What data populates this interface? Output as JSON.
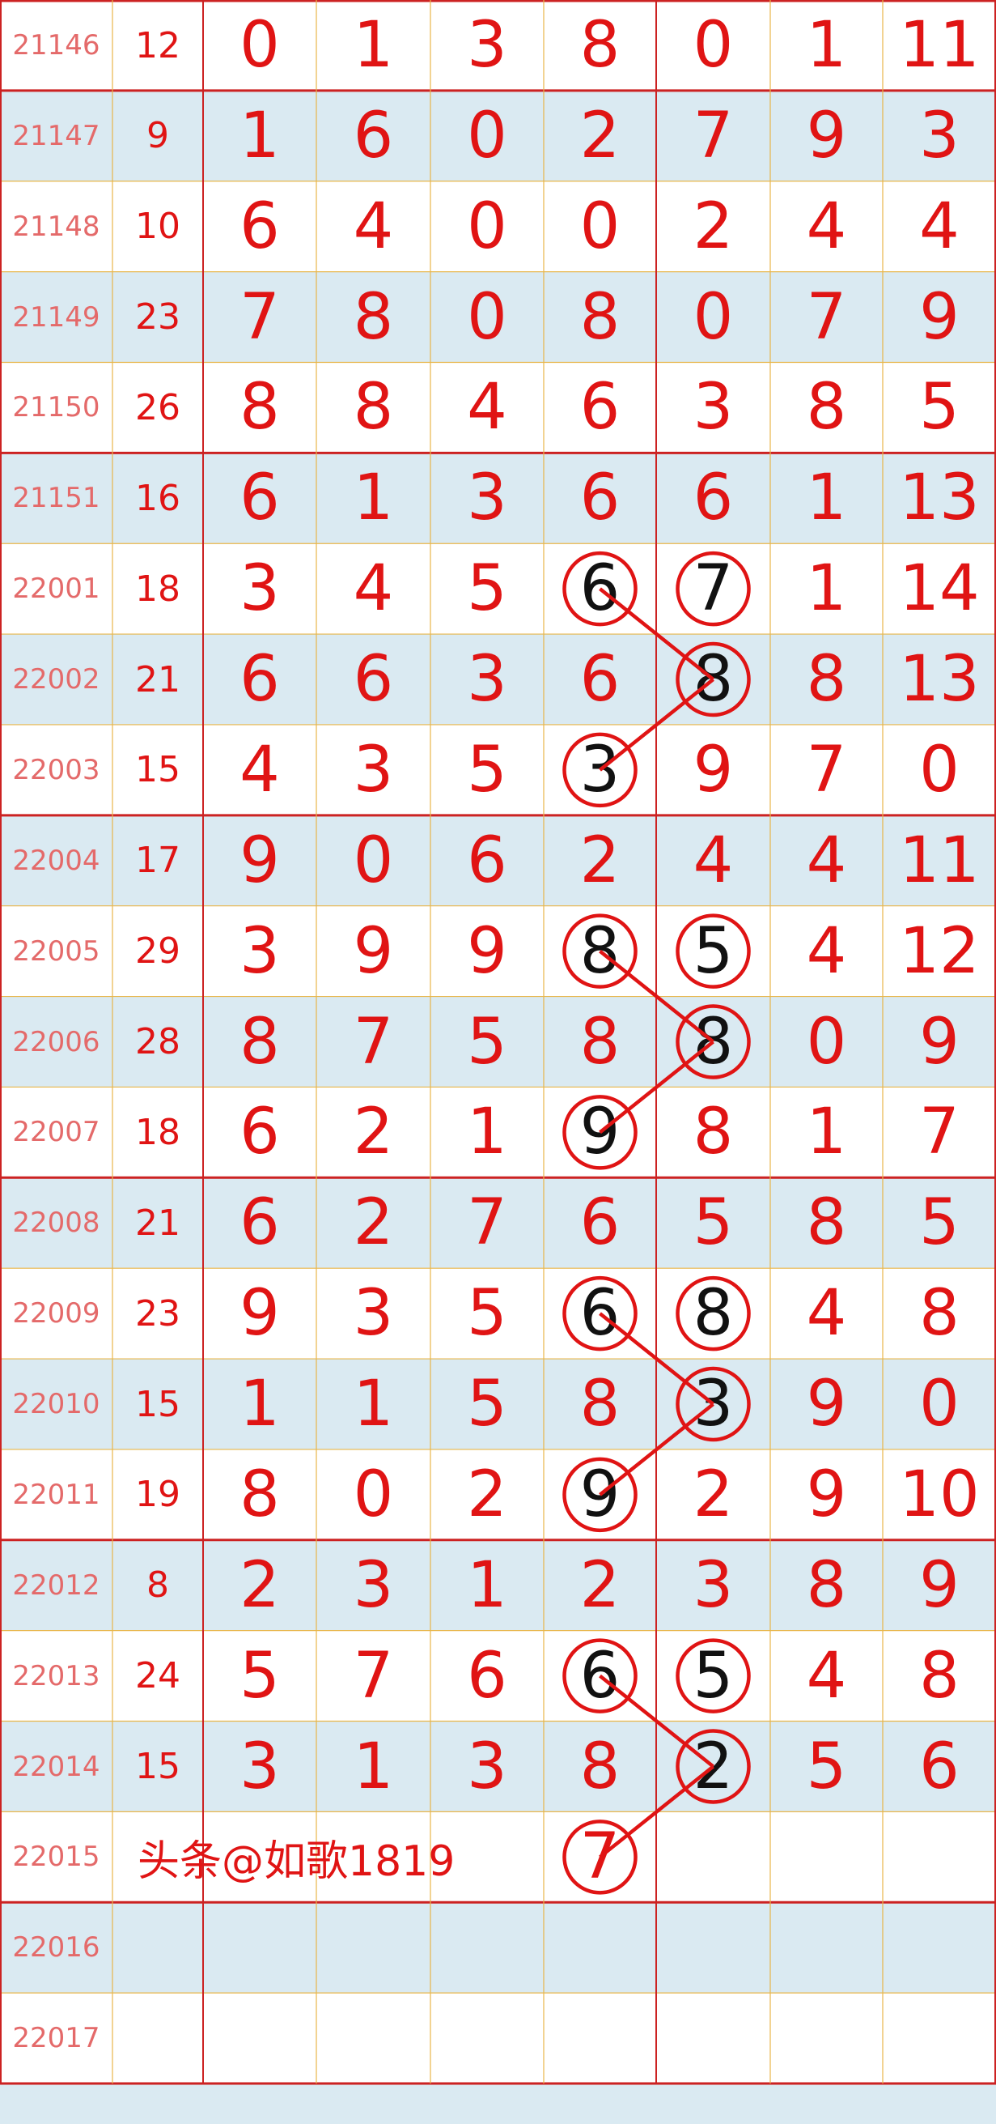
{
  "colors": {
    "number": "#e01414",
    "issue": "#e46a6a",
    "row_alt": "#daeaf2",
    "circle": "#e01414",
    "circled_digit": "#111111",
    "major_line": "#cc2222",
    "minor_line": "#e8b64a"
  },
  "rows": [
    {
      "issue": "21146",
      "sum": "12",
      "nums": [
        "0",
        "1",
        "3",
        "8",
        "0",
        "1",
        "11"
      ]
    },
    {
      "issue": "21147",
      "sum": "9",
      "nums": [
        "1",
        "6",
        "0",
        "2",
        "7",
        "9",
        "3"
      ]
    },
    {
      "issue": "21148",
      "sum": "10",
      "nums": [
        "6",
        "4",
        "0",
        "0",
        "2",
        "4",
        "4"
      ]
    },
    {
      "issue": "21149",
      "sum": "23",
      "nums": [
        "7",
        "8",
        "0",
        "8",
        "0",
        "7",
        "9"
      ]
    },
    {
      "issue": "21150",
      "sum": "26",
      "nums": [
        "8",
        "8",
        "4",
        "6",
        "3",
        "8",
        "5"
      ]
    },
    {
      "issue": "21151",
      "sum": "16",
      "nums": [
        "6",
        "1",
        "3",
        "6",
        "6",
        "1",
        "13"
      ]
    },
    {
      "issue": "22001",
      "sum": "18",
      "nums": [
        "3",
        "4",
        "5",
        "6",
        "7",
        "1",
        "14"
      ]
    },
    {
      "issue": "22002",
      "sum": "21",
      "nums": [
        "6",
        "6",
        "3",
        "6",
        "8",
        "8",
        "13"
      ]
    },
    {
      "issue": "22003",
      "sum": "15",
      "nums": [
        "4",
        "3",
        "5",
        "3",
        "9",
        "7",
        "0"
      ]
    },
    {
      "issue": "22004",
      "sum": "17",
      "nums": [
        "9",
        "0",
        "6",
        "2",
        "4",
        "4",
        "11"
      ]
    },
    {
      "issue": "22005",
      "sum": "29",
      "nums": [
        "3",
        "9",
        "9",
        "8",
        "5",
        "4",
        "12"
      ]
    },
    {
      "issue": "22006",
      "sum": "28",
      "nums": [
        "8",
        "7",
        "5",
        "8",
        "8",
        "0",
        "9"
      ]
    },
    {
      "issue": "22007",
      "sum": "18",
      "nums": [
        "6",
        "2",
        "1",
        "9",
        "8",
        "1",
        "7"
      ]
    },
    {
      "issue": "22008",
      "sum": "21",
      "nums": [
        "6",
        "2",
        "7",
        "6",
        "5",
        "8",
        "5"
      ]
    },
    {
      "issue": "22009",
      "sum": "23",
      "nums": [
        "9",
        "3",
        "5",
        "6",
        "8",
        "4",
        "8"
      ]
    },
    {
      "issue": "22010",
      "sum": "15",
      "nums": [
        "1",
        "1",
        "5",
        "8",
        "3",
        "9",
        "0"
      ]
    },
    {
      "issue": "22011",
      "sum": "19",
      "nums": [
        "8",
        "0",
        "2",
        "9",
        "2",
        "9",
        "10"
      ]
    },
    {
      "issue": "22012",
      "sum": "8",
      "nums": [
        "2",
        "3",
        "1",
        "2",
        "3",
        "8",
        "9"
      ]
    },
    {
      "issue": "22013",
      "sum": "24",
      "nums": [
        "5",
        "7",
        "6",
        "6",
        "5",
        "4",
        "8"
      ]
    },
    {
      "issue": "22014",
      "sum": "15",
      "nums": [
        "3",
        "1",
        "3",
        "8",
        "2",
        "5",
        "6"
      ]
    },
    {
      "issue": "22015",
      "sum": "",
      "nums": [
        "",
        "",
        "",
        "7",
        "",
        "",
        ""
      ]
    },
    {
      "issue": "22016",
      "sum": "",
      "nums": [
        "",
        "",
        "",
        "",
        "",
        "",
        ""
      ]
    },
    {
      "issue": "22017",
      "sum": "",
      "nums": [
        "",
        "",
        "",
        "",
        "",
        "",
        ""
      ]
    }
  ],
  "watermark": {
    "issue": "22015",
    "text": "头条@如歌1819"
  },
  "circled": [
    {
      "issue": "22001",
      "pos": 4
    },
    {
      "issue": "22001",
      "pos": 5
    },
    {
      "issue": "22002",
      "pos": 5
    },
    {
      "issue": "22003",
      "pos": 4
    },
    {
      "issue": "22005",
      "pos": 4
    },
    {
      "issue": "22005",
      "pos": 5
    },
    {
      "issue": "22006",
      "pos": 5
    },
    {
      "issue": "22007",
      "pos": 4
    },
    {
      "issue": "22009",
      "pos": 4
    },
    {
      "issue": "22009",
      "pos": 5
    },
    {
      "issue": "22010",
      "pos": 5
    },
    {
      "issue": "22011",
      "pos": 4
    },
    {
      "issue": "22013",
      "pos": 4
    },
    {
      "issue": "22013",
      "pos": 5
    },
    {
      "issue": "22014",
      "pos": 5
    },
    {
      "issue": "22015",
      "pos": 4,
      "red": true
    }
  ],
  "links": [
    [
      {
        "issue": "22001",
        "pos": 4
      },
      {
        "issue": "22002",
        "pos": 5
      },
      {
        "issue": "22003",
        "pos": 4
      }
    ],
    [
      {
        "issue": "22005",
        "pos": 4
      },
      {
        "issue": "22006",
        "pos": 5
      },
      {
        "issue": "22007",
        "pos": 4
      }
    ],
    [
      {
        "issue": "22009",
        "pos": 4
      },
      {
        "issue": "22010",
        "pos": 5
      },
      {
        "issue": "22011",
        "pos": 4
      }
    ],
    [
      {
        "issue": "22013",
        "pos": 4
      },
      {
        "issue": "22014",
        "pos": 5
      },
      {
        "issue": "22015",
        "pos": 4
      }
    ]
  ]
}
